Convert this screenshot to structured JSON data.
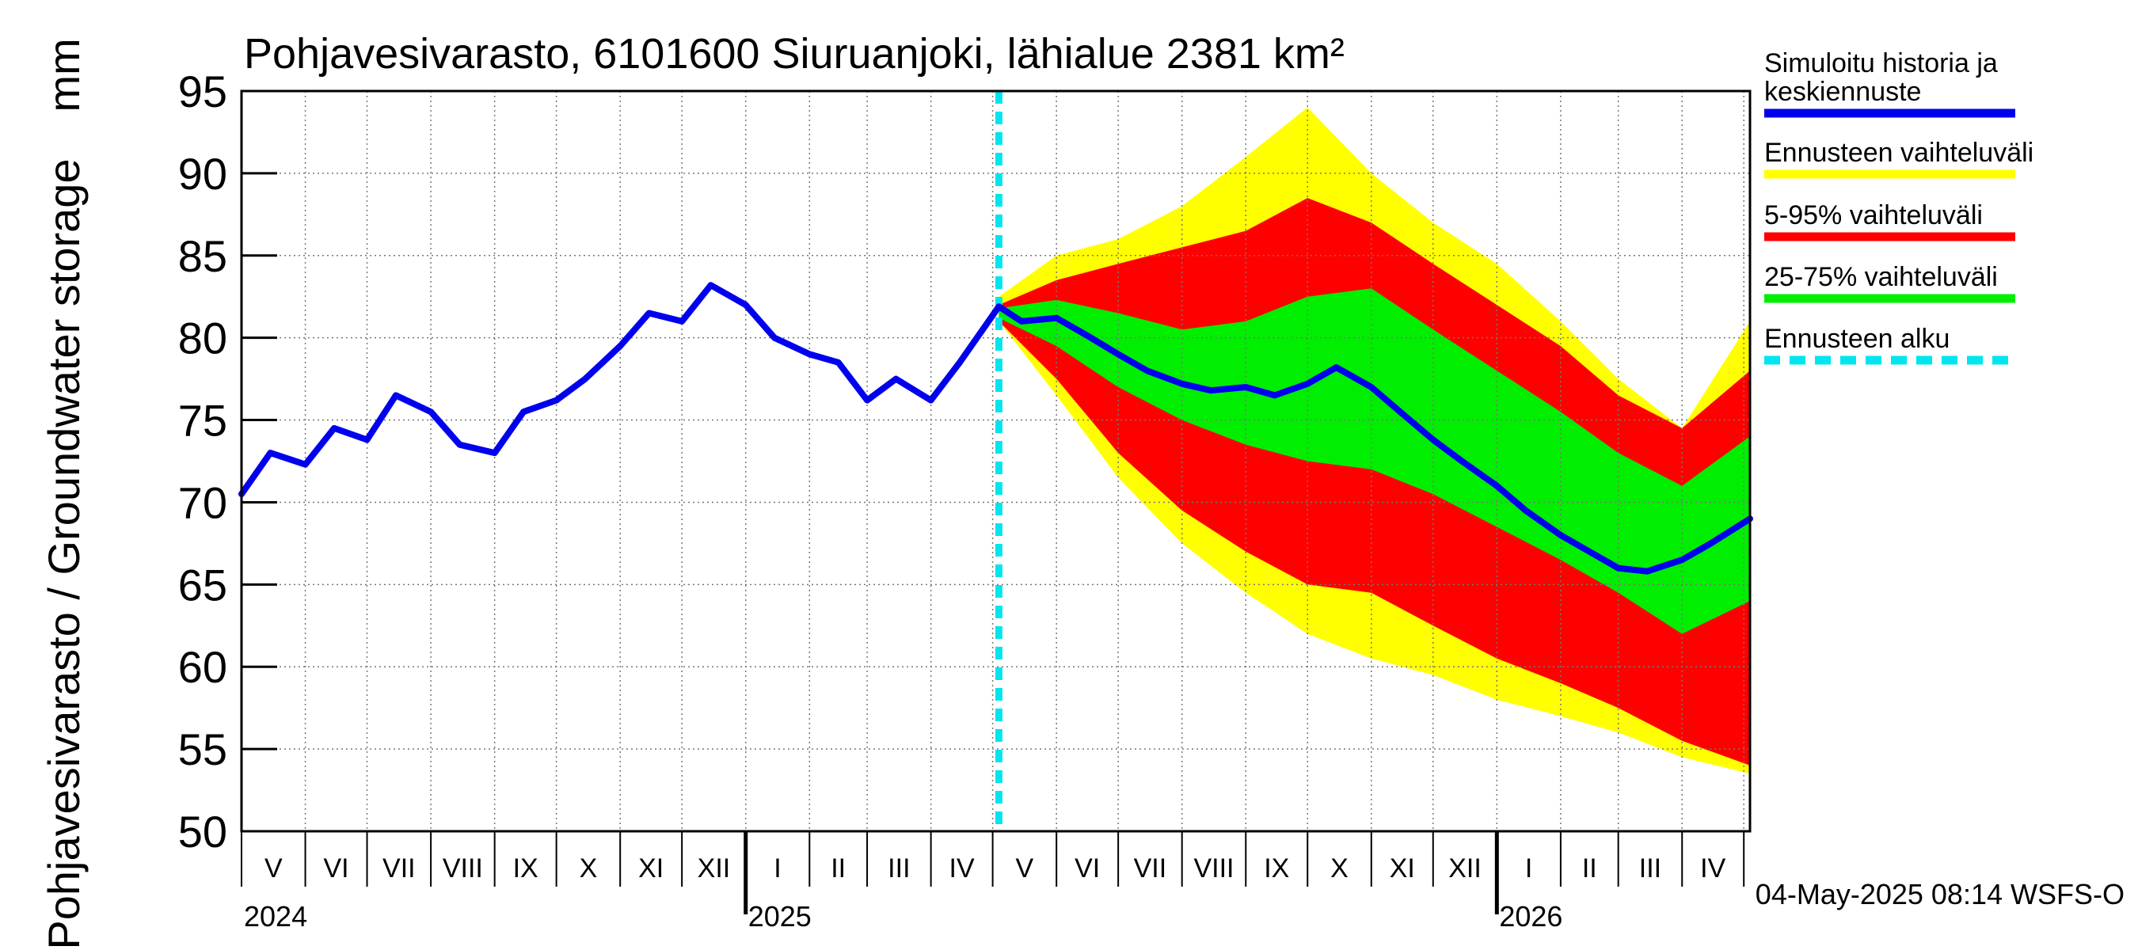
{
  "chart_data": {
    "type": "area",
    "title": "Pohjavesivarasto, 6101600 Siuruanjoki, lähialue 2381 km²",
    "ylabel": "Pohjavesivarasto / Groundwater storage",
    "yunit": "mm",
    "ylim": [
      50,
      95
    ],
    "y_ticks": [
      "50",
      "55",
      "60",
      "65",
      "70",
      "75",
      "80",
      "85",
      "90",
      "95"
    ],
    "x_range": [
      "2024-05-01",
      "2026-05-04"
    ],
    "grid": true,
    "legend_position": "right",
    "month_labels": [
      "V",
      "VI",
      "VII",
      "VIII",
      "IX",
      "X",
      "XI",
      "XII",
      "I",
      "II",
      "III",
      "IV",
      "V",
      "VI",
      "VII",
      "VIII",
      "IX",
      "X",
      "XI",
      "XII",
      "I",
      "II",
      "III",
      "IV"
    ],
    "year_labels": [
      "2024",
      "2025",
      "2026"
    ],
    "forecast_start": "2025-05-04",
    "legend": [
      {
        "label_lines": [
          "Simuloitu historia ja",
          "keskiennuste"
        ],
        "color": "#0000ee",
        "style": "solid"
      },
      {
        "label_lines": [
          "Ennusteen vaihteluväli"
        ],
        "color": "#ffff00",
        "style": "solid"
      },
      {
        "label_lines": [
          "5-95% vaihteluväli"
        ],
        "color": "#ff0000",
        "style": "solid"
      },
      {
        "label_lines": [
          "25-75% vaihteluväli"
        ],
        "color": "#00ee00",
        "style": "solid"
      },
      {
        "label_lines": [
          "Ennusteen alku"
        ],
        "color": "#00e5ee",
        "style": "dashed"
      }
    ],
    "series": [
      {
        "name": "Simuloitu historia ja keskiennuste",
        "color": "#0000ee",
        "x": [
          "2024-05-01",
          "2024-05-15",
          "2024-06-01",
          "2024-06-15",
          "2024-07-01",
          "2024-07-15",
          "2024-08-01",
          "2024-08-15",
          "2024-09-01",
          "2024-09-15",
          "2024-10-01",
          "2024-10-15",
          "2024-11-01",
          "2024-11-15",
          "2024-12-01",
          "2024-12-15",
          "2025-01-01",
          "2025-01-15",
          "2025-02-01",
          "2025-02-15",
          "2025-03-01",
          "2025-03-15",
          "2025-04-01",
          "2025-04-15",
          "2025-05-04",
          "2025-05-15",
          "2025-06-01",
          "2025-06-15",
          "2025-07-01",
          "2025-07-15",
          "2025-08-01",
          "2025-08-15",
          "2025-09-01",
          "2025-09-15",
          "2025-10-01",
          "2025-10-15",
          "2025-11-01",
          "2025-11-15",
          "2025-12-01",
          "2025-12-15",
          "2026-01-01",
          "2026-01-15",
          "2026-02-01",
          "2026-02-15",
          "2026-03-01",
          "2026-03-15",
          "2026-04-01",
          "2026-04-15",
          "2026-05-04"
        ],
        "y": [
          70.5,
          73.0,
          72.3,
          74.5,
          73.8,
          76.5,
          75.5,
          73.5,
          73.0,
          75.5,
          76.2,
          77.5,
          79.5,
          81.5,
          81.0,
          83.2,
          82.0,
          80.0,
          79.0,
          78.5,
          76.2,
          77.5,
          76.2,
          78.5,
          81.9,
          81.0,
          81.2,
          80.2,
          79.0,
          78.0,
          77.2,
          76.8,
          77.0,
          76.5,
          77.2,
          78.2,
          77.0,
          75.5,
          73.8,
          72.5,
          71.0,
          69.5,
          68.0,
          67.0,
          66.0,
          65.8,
          66.5,
          67.5,
          69.0
        ]
      },
      {
        "name": "Ennusteen vaihteluväli",
        "color": "#ffff00",
        "x": [
          "2025-05-04",
          "2025-06-01",
          "2025-07-01",
          "2025-08-01",
          "2025-09-01",
          "2025-10-01",
          "2025-11-01",
          "2025-12-01",
          "2026-01-01",
          "2026-02-01",
          "2026-03-01",
          "2026-04-01",
          "2026-05-04"
        ],
        "y_low": [
          81.0,
          76.5,
          71.5,
          67.5,
          64.5,
          62.0,
          60.5,
          59.5,
          58.0,
          57.0,
          56.0,
          54.5,
          53.5
        ],
        "y_high": [
          82.5,
          85.0,
          86.0,
          88.0,
          91.0,
          94.0,
          90.0,
          87.0,
          84.5,
          81.0,
          77.5,
          74.5,
          81.0
        ]
      },
      {
        "name": "5-95% vaihteluväli",
        "color": "#ff0000",
        "x": [
          "2025-05-04",
          "2025-06-01",
          "2025-07-01",
          "2025-08-01",
          "2025-09-01",
          "2025-10-01",
          "2025-11-01",
          "2025-12-01",
          "2026-01-01",
          "2026-02-01",
          "2026-03-01",
          "2026-04-01",
          "2026-05-04"
        ],
        "y_low": [
          81.0,
          77.5,
          73.0,
          69.5,
          67.0,
          65.0,
          64.5,
          62.5,
          60.5,
          59.0,
          57.5,
          55.5,
          54.0
        ],
        "y_high": [
          82.0,
          83.5,
          84.5,
          85.5,
          86.5,
          88.5,
          87.0,
          84.5,
          82.0,
          79.5,
          76.5,
          74.5,
          78.0
        ]
      },
      {
        "name": "25-75% vaihteluväli",
        "color": "#00ee00",
        "x": [
          "2025-05-04",
          "2025-06-01",
          "2025-07-01",
          "2025-08-01",
          "2025-09-01",
          "2025-10-01",
          "2025-11-01",
          "2025-12-01",
          "2026-01-01",
          "2026-02-01",
          "2026-03-01",
          "2026-04-01",
          "2026-05-04"
        ],
        "y_low": [
          81.2,
          79.5,
          77.0,
          75.0,
          73.5,
          72.5,
          72.0,
          70.5,
          68.5,
          66.5,
          64.5,
          62.0,
          64.0
        ],
        "y_high": [
          81.8,
          82.3,
          81.5,
          80.5,
          81.0,
          82.5,
          83.0,
          80.5,
          78.0,
          75.5,
          73.0,
          71.0,
          74.0
        ]
      }
    ]
  },
  "footer": {
    "timestamp": "04-May-2025 08:14 WSFS-O"
  }
}
